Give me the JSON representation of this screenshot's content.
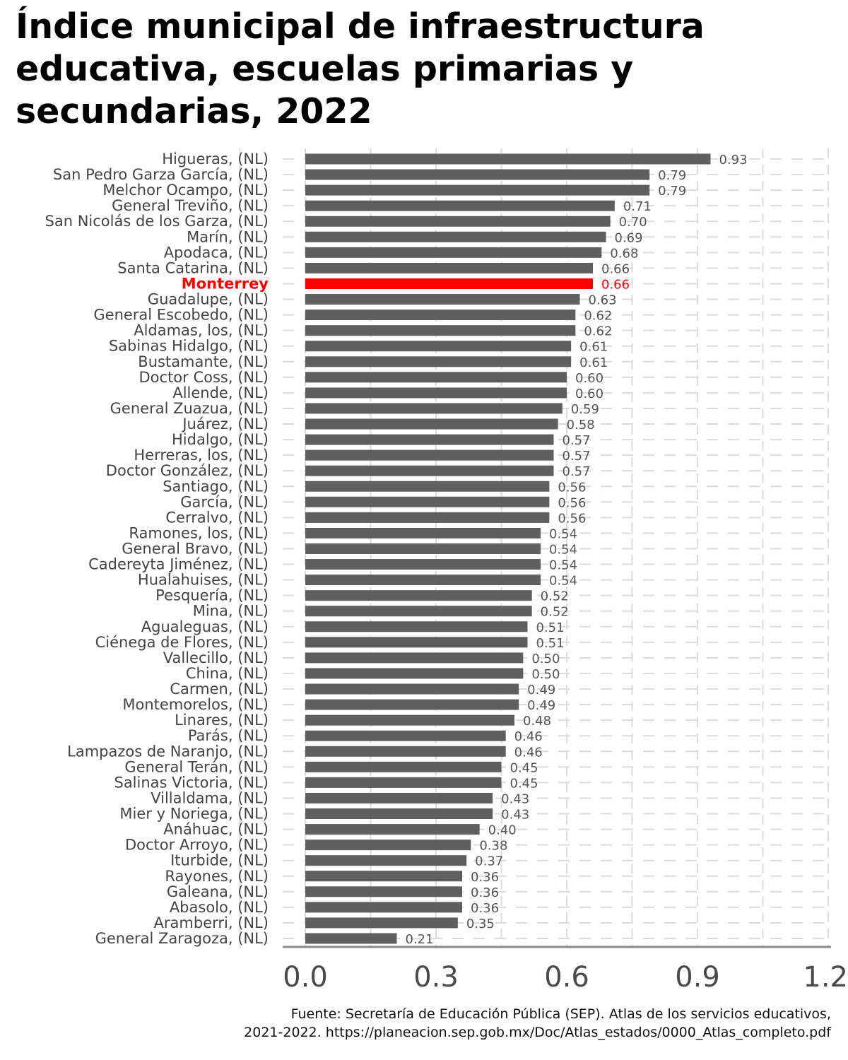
{
  "chart_data": {
    "type": "bar",
    "orientation": "horizontal",
    "title": "Índice municipal de infraestructura educativa, escuelas primarias y secundarias, 2022",
    "xlim": [
      0,
      1.2
    ],
    "xticks": [
      "0.0",
      "0.3",
      "0.6",
      "0.9",
      "1.2"
    ],
    "xtick_values": [
      0,
      0.3,
      0.6,
      0.9,
      1.2
    ],
    "highlight": "Monterrey",
    "grid": "dashed",
    "categories": [
      "Higueras, (NL)",
      "San Pedro Garza García, (NL)",
      "Melchor Ocampo, (NL)",
      "General Treviño, (NL)",
      "San Nicolás de los Garza, (NL)",
      "Marín, (NL)",
      "Apodaca, (NL)",
      "Santa Catarina, (NL)",
      "Monterrey",
      "Guadalupe, (NL)",
      "General Escobedo, (NL)",
      "Aldamas, los, (NL)",
      "Sabinas Hidalgo, (NL)",
      "Bustamante, (NL)",
      "Doctor Coss, (NL)",
      "Allende, (NL)",
      "General Zuazua, (NL)",
      "Juárez, (NL)",
      "Hidalgo, (NL)",
      "Herreras, los, (NL)",
      "Doctor González, (NL)",
      "Santiago, (NL)",
      "García, (NL)",
      "Cerralvo, (NL)",
      "Ramones, los, (NL)",
      "General Bravo, (NL)",
      "Cadereyta Jiménez, (NL)",
      "Hualahuises, (NL)",
      "Pesquería, (NL)",
      "Mina, (NL)",
      "Agualeguas, (NL)",
      "Ciénega de Flores, (NL)",
      "Vallecillo, (NL)",
      "China, (NL)",
      "Carmen, (NL)",
      "Montemorelos, (NL)",
      "Linares, (NL)",
      "Parás, (NL)",
      "Lampazos de Naranjo, (NL)",
      "General Terán, (NL)",
      "Salinas Victoria, (NL)",
      "Villaldama, (NL)",
      "Mier y Noriega, (NL)",
      "Anáhuac, (NL)",
      "Doctor Arroyo, (NL)",
      "Iturbide, (NL)",
      "Rayones, (NL)",
      "Galeana, (NL)",
      "Abasolo, (NL)",
      "Aramberri, (NL)",
      "General Zaragoza, (NL)"
    ],
    "values": [
      0.93,
      0.79,
      0.79,
      0.71,
      0.7,
      0.69,
      0.68,
      0.66,
      0.66,
      0.63,
      0.62,
      0.62,
      0.61,
      0.61,
      0.6,
      0.6,
      0.59,
      0.58,
      0.57,
      0.57,
      0.57,
      0.56,
      0.56,
      0.56,
      0.54,
      0.54,
      0.54,
      0.54,
      0.52,
      0.52,
      0.51,
      0.51,
      0.5,
      0.5,
      0.49,
      0.49,
      0.48,
      0.46,
      0.46,
      0.45,
      0.45,
      0.43,
      0.43,
      0.4,
      0.38,
      0.37,
      0.36,
      0.36,
      0.36,
      0.35,
      0.21
    ],
    "value_labels": [
      "0.93",
      "0.79",
      "0.79",
      "0.71",
      "0.70",
      "0.69",
      "0.68",
      "0.66",
      "0.66",
      "0.63",
      "0.62",
      "0.62",
      "0.61",
      "0.61",
      "0.60",
      "0.60",
      "0.59",
      "0.58",
      "0.57",
      "0.57",
      "0.57",
      "0.56",
      "0.56",
      "0.56",
      "0.54",
      "0.54",
      "0.54",
      "0.54",
      "0.52",
      "0.52",
      "0.51",
      "0.51",
      "0.50",
      "0.50",
      "0.49",
      "0.49",
      "0.48",
      "0.46",
      "0.46",
      "0.45",
      "0.45",
      "0.43",
      "0.43",
      "0.40",
      "0.38",
      "0.37",
      "0.36",
      "0.36",
      "0.36",
      "0.35",
      "0.21"
    ],
    "colors": {
      "bar": "#5f5f5f",
      "highlight": "#ff0000",
      "label": "#444444",
      "value_label": "#555555",
      "axis": "#888888",
      "grid": "#dcdcdc"
    }
  },
  "source": "Fuente: Secretaría de Educación Pública (SEP). Atlas de los servicios educativos,\n2021-2022. https://planeacion.sep.gob.mx/Doc/Atlas_estados/0000_Atlas_completo.pdf"
}
